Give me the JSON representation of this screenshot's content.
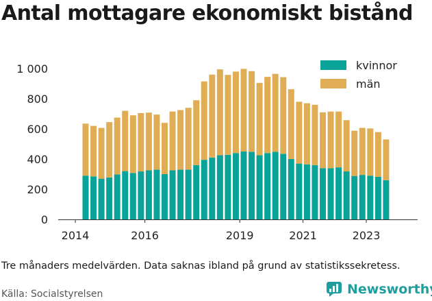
{
  "title": "Antal mottagare ekonomiskt bistånd",
  "note": "Tre månaders medelvärden. Data saknas ibland på grund av statistikssekretess.",
  "source": "Källa: Socialstyrelsen",
  "brand": {
    "name": "Newsworthy",
    "color": "#1f9ea0"
  },
  "chart_data": {
    "type": "bar",
    "stacked": true,
    "x_ticks": [
      {
        "label": "2014",
        "index": 0
      },
      {
        "label": "2016",
        "index": 8
      },
      {
        "label": "2019",
        "index": 20
      },
      {
        "label": "2021",
        "index": 28
      },
      {
        "label": "2023",
        "index": 36
      }
    ],
    "y_ticks": [
      0,
      200,
      400,
      600,
      800,
      1000
    ],
    "y_tick_labels": [
      "0",
      "200",
      "400",
      "600",
      "800",
      "1 000"
    ],
    "ylim": [
      0,
      1000
    ],
    "grid": false,
    "legend_position": "top-right",
    "series": [
      {
        "name": "kvinnor",
        "color": "#0aa39a",
        "values": [
          290,
          285,
          270,
          278,
          298,
          320,
          308,
          318,
          325,
          330,
          300,
          325,
          330,
          330,
          360,
          395,
          410,
          425,
          428,
          440,
          450,
          448,
          425,
          440,
          448,
          435,
          400,
          370,
          365,
          360,
          340,
          340,
          345,
          318,
          288,
          295,
          290,
          282,
          260
        ]
      },
      {
        "name": "män",
        "color": "#e0ad55",
        "values": [
          345,
          335,
          337,
          367,
          377,
          400,
          382,
          387,
          383,
          365,
          340,
          390,
          395,
          410,
          430,
          520,
          550,
          570,
          530,
          540,
          548,
          535,
          480,
          505,
          517,
          508,
          463,
          410,
          405,
          400,
          370,
          375,
          370,
          340,
          300,
          312,
          313,
          297,
          270
        ]
      }
    ]
  }
}
